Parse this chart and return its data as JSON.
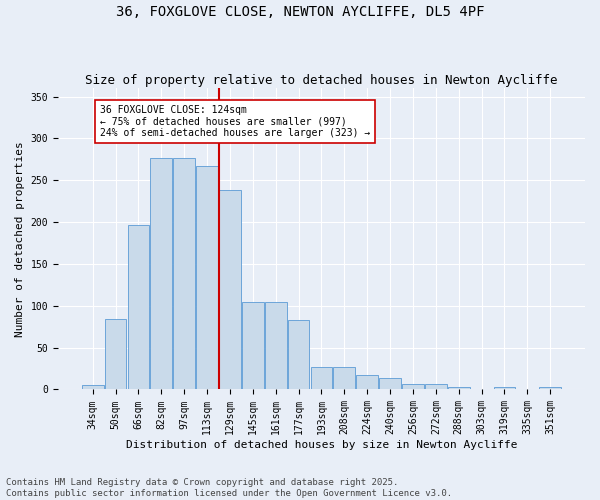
{
  "title": "36, FOXGLOVE CLOSE, NEWTON AYCLIFFE, DL5 4PF",
  "subtitle": "Size of property relative to detached houses in Newton Aycliffe",
  "xlabel": "Distribution of detached houses by size in Newton Aycliffe",
  "ylabel": "Number of detached properties",
  "bar_color": "#c9daea",
  "bar_edge_color": "#5b9bd5",
  "background_color": "#e8eef7",
  "categories": [
    "34sqm",
    "50sqm",
    "66sqm",
    "82sqm",
    "97sqm",
    "113sqm",
    "129sqm",
    "145sqm",
    "161sqm",
    "177sqm",
    "193sqm",
    "208sqm",
    "224sqm",
    "240sqm",
    "256sqm",
    "272sqm",
    "288sqm",
    "303sqm",
    "319sqm",
    "335sqm",
    "351sqm"
  ],
  "values": [
    5,
    84,
    196,
    277,
    276,
    267,
    238,
    104,
    104,
    83,
    27,
    27,
    17,
    14,
    7,
    6,
    3,
    1,
    3,
    1,
    3
  ],
  "vline_color": "#cc0000",
  "annotation_line1": "36 FOXGLOVE CLOSE: 124sqm",
  "annotation_line2": "← 75% of detached houses are smaller (997)",
  "annotation_line3": "24% of semi-detached houses are larger (323) →",
  "annotation_box_color": "#ffffff",
  "annotation_box_edge_color": "#cc0000",
  "ylim": [
    0,
    360
  ],
  "yticks": [
    0,
    50,
    100,
    150,
    200,
    250,
    300,
    350
  ],
  "footer_text": "Contains HM Land Registry data © Crown copyright and database right 2025.\nContains public sector information licensed under the Open Government Licence v3.0.",
  "grid_color": "#ffffff",
  "title_fontsize": 10,
  "subtitle_fontsize": 9,
  "label_fontsize": 8,
  "tick_fontsize": 7,
  "footer_fontsize": 6.5
}
